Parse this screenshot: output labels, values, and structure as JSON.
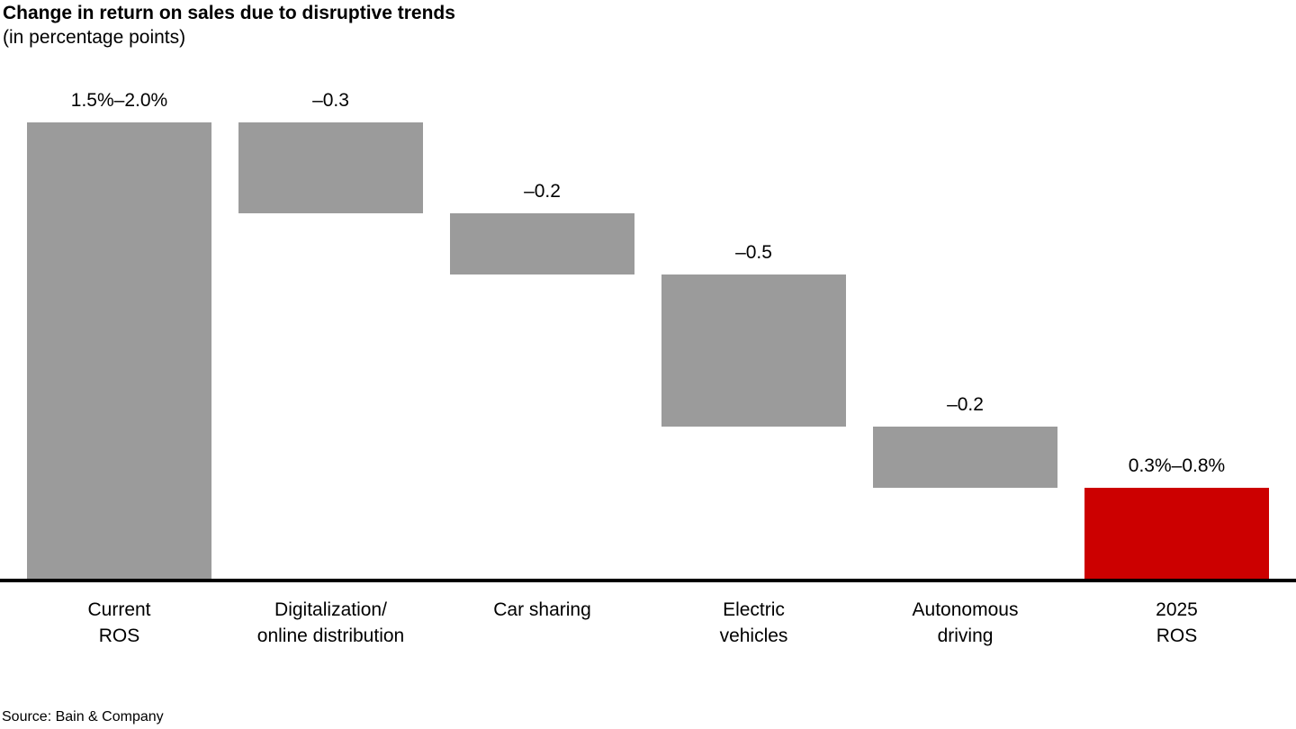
{
  "header": {
    "title": "Change in return on sales due to disruptive trends",
    "subtitle": "(in percentage points)"
  },
  "footer": {
    "source": "Source: Bain & Company"
  },
  "colors": {
    "bar_gray": "#9b9b9b",
    "bar_red": "#cc0000",
    "axis": "#000000",
    "text": "#000000",
    "background": "#ffffff"
  },
  "chart_data": {
    "type": "waterfall",
    "title": "Change in return on sales due to disruptive trends",
    "subtitle": "(in percentage points)",
    "unit": "percentage points",
    "value_axis_visible": false,
    "grid": false,
    "baseline_value": 0,
    "ylim": [
      0,
      1.75
    ],
    "bars": [
      {
        "category_lines": [
          "Current",
          "ROS"
        ],
        "label": "1.5%–2.0%",
        "value_range": "1.5–2.0",
        "start": 0.0,
        "end": 1.5,
        "color": "gray",
        "role": "total"
      },
      {
        "category_lines": [
          "Digitalization/",
          "online distribution"
        ],
        "label": "–0.3",
        "value": -0.3,
        "start": 1.2,
        "end": 1.5,
        "color": "gray",
        "role": "decrease"
      },
      {
        "category_lines": [
          "Car sharing"
        ],
        "label": "–0.2",
        "value": -0.2,
        "start": 1.0,
        "end": 1.2,
        "color": "gray",
        "role": "decrease"
      },
      {
        "category_lines": [
          "Electric",
          "vehicles"
        ],
        "label": "–0.5",
        "value": -0.5,
        "start": 0.5,
        "end": 1.0,
        "color": "gray",
        "role": "decrease"
      },
      {
        "category_lines": [
          "Autonomous",
          "driving"
        ],
        "label": "–0.2",
        "value": -0.2,
        "start": 0.3,
        "end": 0.5,
        "color": "gray",
        "role": "decrease"
      },
      {
        "category_lines": [
          "2025",
          "ROS"
        ],
        "label": "0.3%–0.8%",
        "value_range": "0.3–0.8",
        "start": 0.0,
        "end": 0.3,
        "color": "red",
        "role": "total"
      }
    ]
  }
}
